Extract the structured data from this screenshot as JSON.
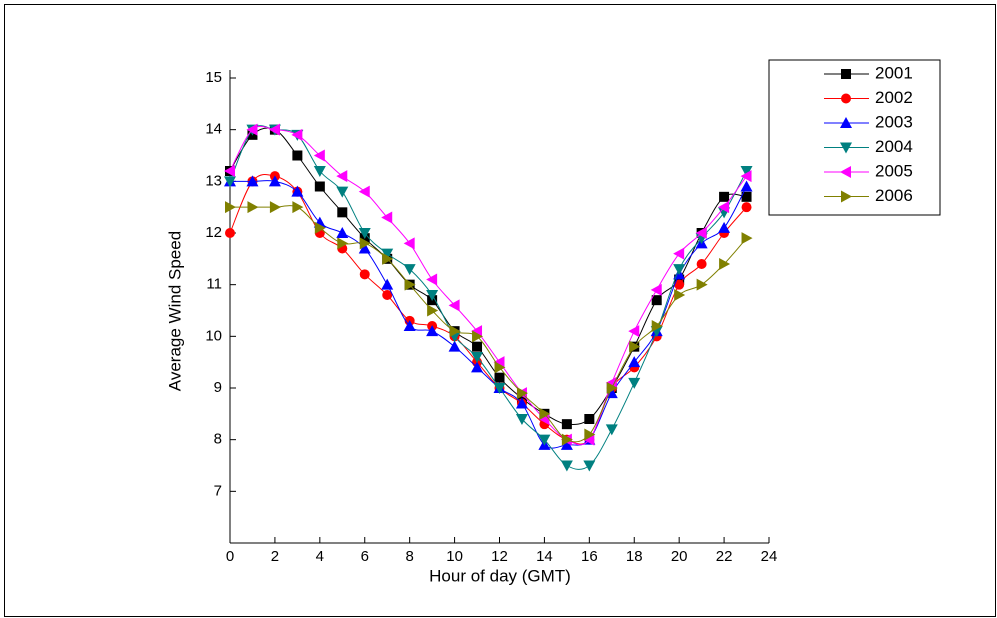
{
  "chart_data": {
    "type": "line",
    "x_label": "Hour of day (GMT)",
    "y_label": "Average Wind Speed",
    "x": [
      0,
      1,
      2,
      3,
      4,
      5,
      6,
      7,
      8,
      9,
      10,
      11,
      12,
      13,
      14,
      15,
      16,
      17,
      18,
      19,
      20,
      21,
      22,
      23
    ],
    "xlim": [
      0,
      24
    ],
    "xticks": [
      0,
      2,
      4,
      6,
      8,
      10,
      12,
      14,
      16,
      18,
      20,
      22,
      24
    ],
    "ylim": [
      6,
      15
    ],
    "yticks": [
      7,
      8,
      9,
      10,
      11,
      12,
      13,
      14,
      15
    ],
    "legend": "upper right",
    "series": [
      {
        "name": "2001",
        "color": "#000000",
        "marker": "square",
        "values": [
          13.2,
          13.9,
          14.0,
          13.5,
          12.9,
          12.4,
          11.9,
          11.5,
          11.0,
          10.7,
          10.1,
          9.8,
          9.2,
          8.8,
          8.5,
          8.3,
          8.4,
          9.0,
          9.8,
          10.7,
          11.1,
          12.0,
          12.7,
          12.7
        ]
      },
      {
        "name": "2002",
        "color": "#ff0000",
        "marker": "circle",
        "values": [
          12.0,
          13.0,
          13.1,
          12.8,
          12.0,
          11.7,
          11.2,
          10.8,
          10.3,
          10.2,
          10.0,
          9.5,
          9.0,
          8.7,
          8.3,
          8.0,
          8.0,
          9.0,
          9.4,
          10.0,
          11.0,
          11.4,
          12.0,
          12.5
        ]
      },
      {
        "name": "2003",
        "color": "#0000ff",
        "marker": "triangle-up",
        "values": [
          13.0,
          13.0,
          13.0,
          12.8,
          12.2,
          12.0,
          11.7,
          11.0,
          10.2,
          10.1,
          9.8,
          9.4,
          9.0,
          8.7,
          7.9,
          7.9,
          8.0,
          8.9,
          9.5,
          10.1,
          11.2,
          11.8,
          12.1,
          12.9
        ]
      },
      {
        "name": "2004",
        "color": "#008080",
        "marker": "triangle-down",
        "values": [
          13.0,
          14.0,
          14.0,
          13.9,
          13.2,
          12.8,
          12.0,
          11.6,
          11.3,
          10.8,
          10.0,
          9.6,
          9.0,
          8.4,
          8.0,
          7.5,
          7.5,
          8.2,
          9.1,
          10.1,
          11.3,
          11.9,
          12.4,
          13.2
        ]
      },
      {
        "name": "2005",
        "color": "#ff00ff",
        "marker": "triangle-left",
        "values": [
          13.2,
          14.0,
          14.0,
          13.9,
          13.5,
          13.1,
          12.8,
          12.3,
          11.8,
          11.1,
          10.6,
          10.1,
          9.5,
          8.9,
          8.4,
          8.0,
          8.0,
          9.1,
          10.1,
          10.9,
          11.6,
          12.0,
          12.5,
          13.1
        ]
      },
      {
        "name": "2006",
        "color": "#808000",
        "marker": "triangle-right",
        "values": [
          12.5,
          12.5,
          12.5,
          12.5,
          12.1,
          11.8,
          11.8,
          11.5,
          11.0,
          10.5,
          10.1,
          10.0,
          9.4,
          8.9,
          8.5,
          8.0,
          8.1,
          9.0,
          9.8,
          10.2,
          10.8,
          11.0,
          11.4,
          11.9
        ]
      }
    ]
  }
}
